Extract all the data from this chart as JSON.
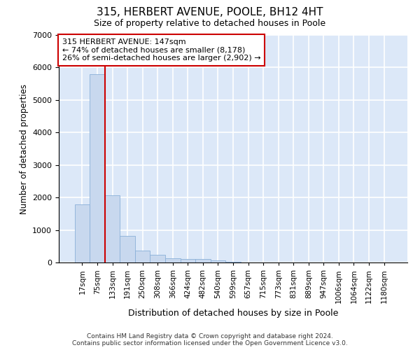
{
  "title1": "315, HERBERT AVENUE, POOLE, BH12 4HT",
  "title2": "Size of property relative to detached houses in Poole",
  "xlabel": "Distribution of detached houses by size in Poole",
  "ylabel": "Number of detached properties",
  "bar_color": "#c8d8ee",
  "bar_edge_color": "#8ab0d8",
  "annotation_box_color": "#cc0000",
  "vline_color": "#cc0000",
  "background_color": "#dce8f8",
  "grid_color": "#ffffff",
  "categories": [
    "17sqm",
    "75sqm",
    "133sqm",
    "191sqm",
    "250sqm",
    "308sqm",
    "366sqm",
    "424sqm",
    "482sqm",
    "540sqm",
    "599sqm",
    "657sqm",
    "715sqm",
    "773sqm",
    "831sqm",
    "889sqm",
    "947sqm",
    "1006sqm",
    "1064sqm",
    "1122sqm",
    "1180sqm"
  ],
  "values": [
    1780,
    5800,
    2060,
    820,
    370,
    230,
    120,
    110,
    100,
    60,
    20,
    10,
    10,
    0,
    0,
    0,
    0,
    0,
    0,
    0,
    0
  ],
  "ylim": [
    0,
    7000
  ],
  "yticks": [
    0,
    1000,
    2000,
    3000,
    4000,
    5000,
    6000,
    7000
  ],
  "property_label": "315 HERBERT AVENUE: 147sqm",
  "annotation_line1": "← 74% of detached houses are smaller (8,178)",
  "annotation_line2": "26% of semi-detached houses are larger (2,902) →",
  "vline_position": 1.5,
  "footer1": "Contains HM Land Registry data © Crown copyright and database right 2024.",
  "footer2": "Contains public sector information licensed under the Open Government Licence v3.0."
}
